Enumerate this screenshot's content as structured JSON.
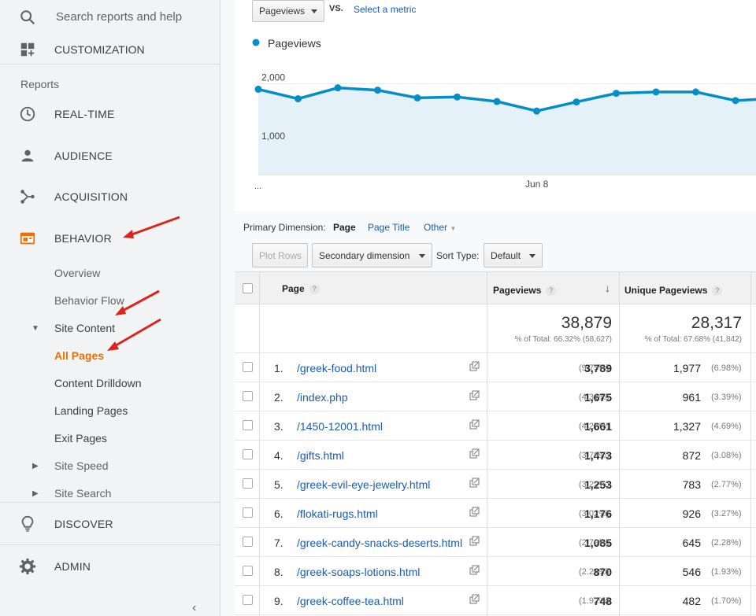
{
  "sidebar": {
    "search_placeholder": "Search reports and help",
    "customization": "CUSTOMIZATION",
    "reports_label": "Reports",
    "realtime": "REAL-TIME",
    "audience": "AUDIENCE",
    "acquisition": "ACQUISITION",
    "behavior": "BEHAVIOR",
    "behavior_items": {
      "overview": "Overview",
      "behavior_flow": "Behavior Flow",
      "site_content": "Site Content",
      "all_pages": "All Pages",
      "content_drilldown": "Content Drilldown",
      "landing_pages": "Landing Pages",
      "exit_pages": "Exit Pages",
      "site_speed": "Site Speed",
      "site_search": "Site Search"
    },
    "discover": "DISCOVER",
    "admin": "ADMIN",
    "accent_color": "#e8710a"
  },
  "chart_controls": {
    "metric": "Pageviews",
    "vs": "VS.",
    "select_metric": "Select a metric"
  },
  "chart_data": {
    "type": "area",
    "series": [
      {
        "name": "Pageviews",
        "values": [
          1880,
          1670,
          1910,
          1860,
          1690,
          1710,
          1610,
          1400,
          1600,
          1790,
          1820,
          1820,
          1630,
          1680
        ]
      }
    ],
    "y_ticks": [
      "2,000",
      "1,000"
    ],
    "ylim": [
      0,
      2500
    ],
    "x_ticks": [
      "...",
      "Jun 8"
    ],
    "legend_position": "top-left",
    "color": "#058dc7"
  },
  "dimensions": {
    "label": "Primary Dimension:",
    "page": "Page",
    "page_title": "Page Title",
    "other": "Other"
  },
  "toolbar": {
    "plot_rows": "Plot Rows",
    "secondary_dimension": "Secondary dimension",
    "sort_type_label": "Sort Type:",
    "sort_type_value": "Default"
  },
  "table": {
    "col_page": "Page",
    "col_pageviews": "Pageviews",
    "col_unique": "Unique Pageviews",
    "totals": {
      "pageviews": "38,879",
      "pageviews_pct": "% of Total: 66.32% (58,627)",
      "unique": "28,317",
      "unique_pct": "% of Total: 67.68% (41,842)"
    },
    "rows": [
      {
        "idx": "1.",
        "page": "/greek-food.html",
        "pv": "3,789",
        "pvp": "(9.75%)",
        "up": "1,977",
        "upp": "(6.98%)"
      },
      {
        "idx": "2.",
        "page": "/index.php",
        "pv": "1,675",
        "pvp": "(4.31%)",
        "up": "961",
        "upp": "(3.39%)"
      },
      {
        "idx": "3.",
        "page": "/1450-12001.html",
        "pv": "1,661",
        "pvp": "(4.27%)",
        "up": "1,327",
        "upp": "(4.69%)"
      },
      {
        "idx": "4.",
        "page": "/gifts.html",
        "pv": "1,473",
        "pvp": "(3.79%)",
        "up": "872",
        "upp": "(3.08%)"
      },
      {
        "idx": "5.",
        "page": "/greek-evil-eye-jewelry.html",
        "pv": "1,253",
        "pvp": "(3.22%)",
        "up": "783",
        "upp": "(2.77%)"
      },
      {
        "idx": "6.",
        "page": "/flokati-rugs.html",
        "pv": "1,176",
        "pvp": "(3.02%)",
        "up": "926",
        "upp": "(3.27%)"
      },
      {
        "idx": "7.",
        "page": "/greek-candy-snacks-deserts.html",
        "pv": "1,085",
        "pvp": "(2.79%)",
        "up": "645",
        "upp": "(2.28%)"
      },
      {
        "idx": "8.",
        "page": "/greek-soaps-lotions.html",
        "pv": "870",
        "pvp": "(2.24%)",
        "up": "546",
        "upp": "(1.93%)"
      },
      {
        "idx": "9.",
        "page": "/greek-coffee-tea.html",
        "pv": "748",
        "pvp": "(1.92%)",
        "up": "482",
        "upp": "(1.70%)"
      }
    ]
  }
}
